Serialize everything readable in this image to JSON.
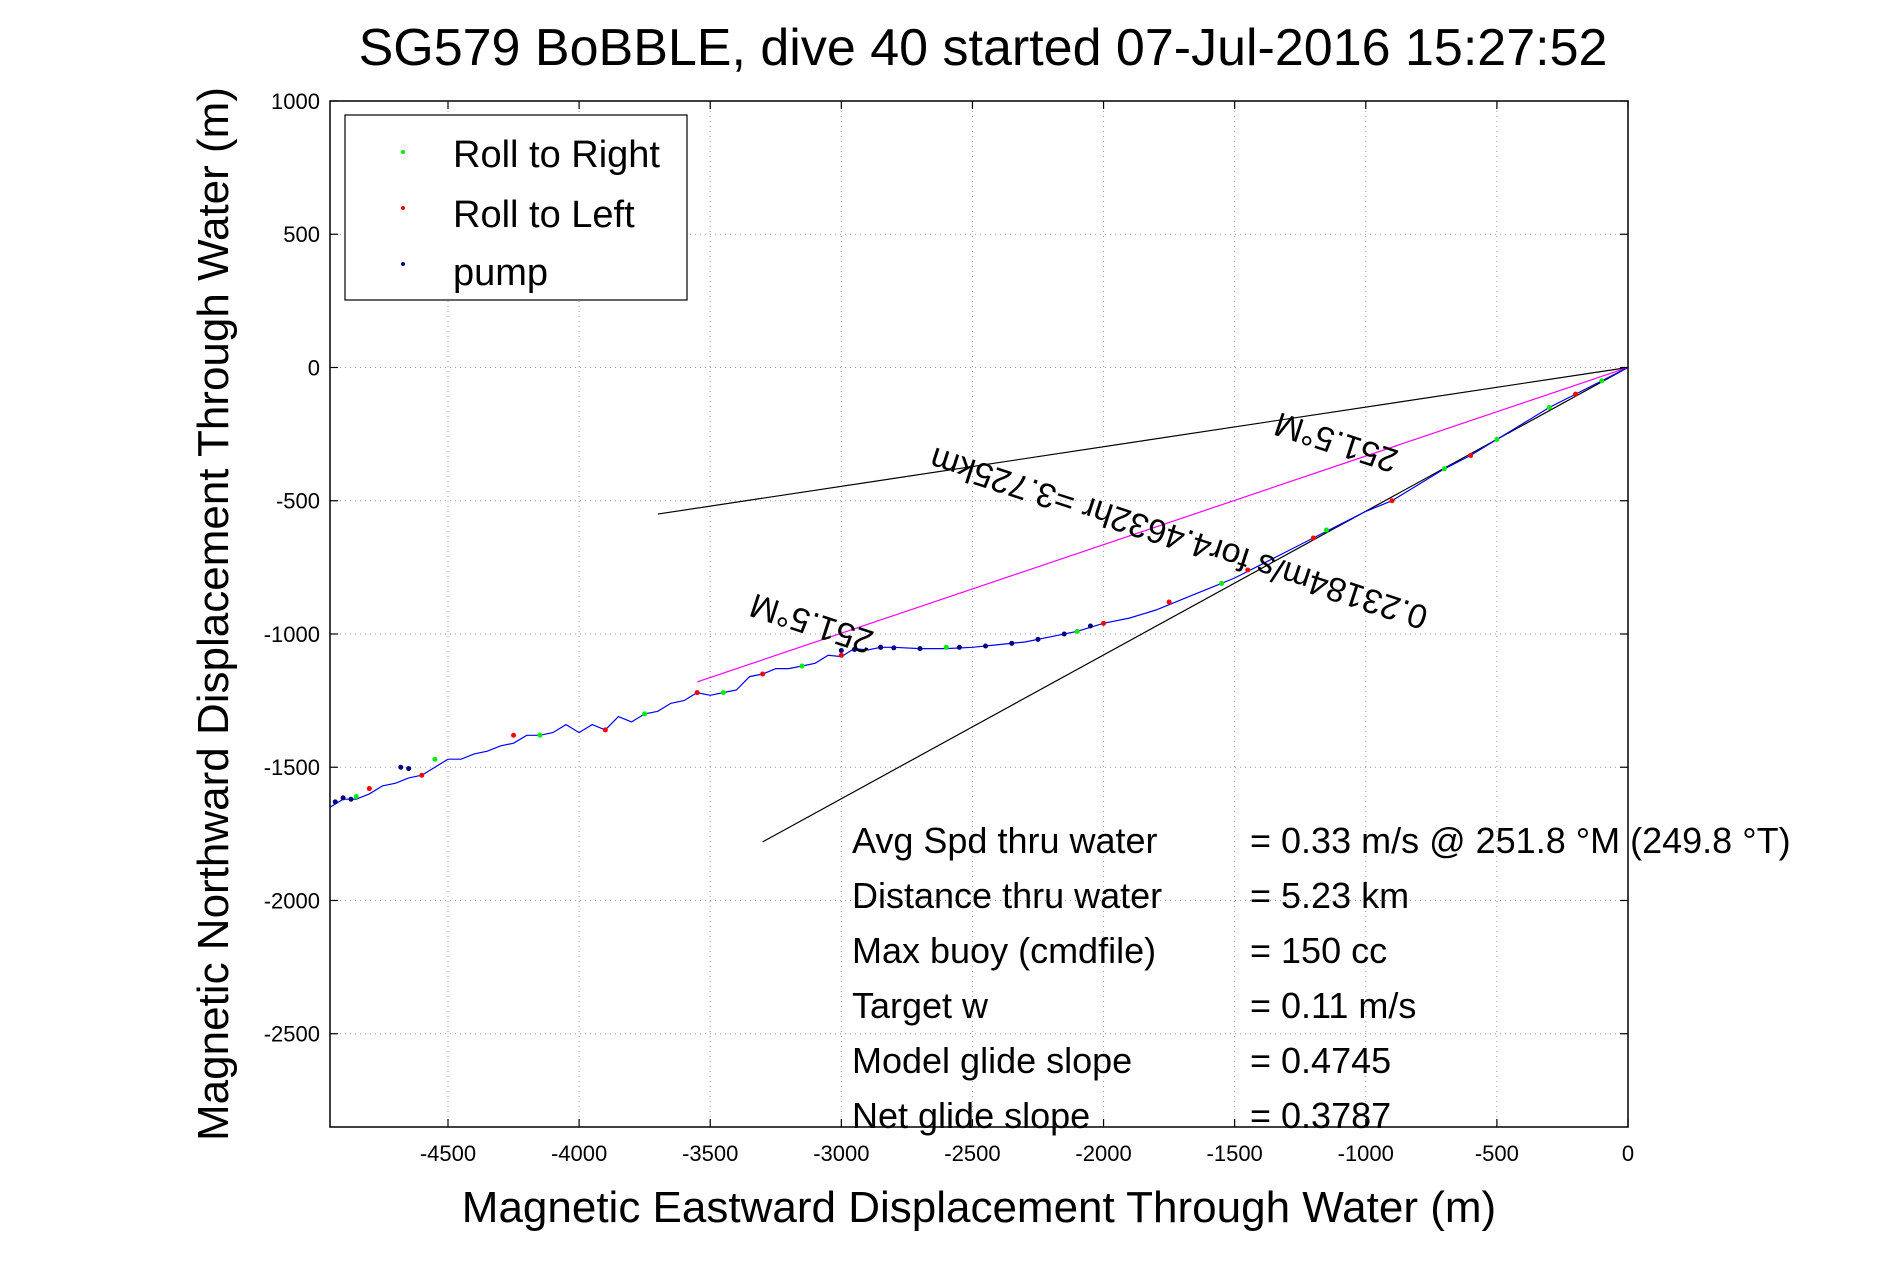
{
  "chart_data": {
    "type": "line",
    "title": "SG579 BoBBLE, dive 40 started 07-Jul-2016 15:27:52",
    "xlabel": "Magnetic Eastward Displacement Through Water (m)",
    "ylabel": "Magnetic Northward Displacement Through Water (m)",
    "xlim": [
      -4950,
      0
    ],
    "ylim": [
      -2850,
      1000
    ],
    "grid": true,
    "x_ticks": [
      -4500,
      -4000,
      -3500,
      -3000,
      -2500,
      -2000,
      -1500,
      -1000,
      -500,
      0
    ],
    "y_ticks": [
      1000,
      500,
      0,
      -500,
      -1000,
      -1500,
      -2000,
      -2500
    ],
    "legend": {
      "location": "top-left",
      "entries": [
        {
          "label": "Roll to Right",
          "color": "#00ee00"
        },
        {
          "label": "Roll to Left",
          "color": "#ff0000"
        },
        {
          "label": "pump",
          "color": "#000080"
        }
      ]
    },
    "series": [
      {
        "color": "#0000ff",
        "x": [
          0,
          -100,
          -200,
          -300,
          -400,
          -500,
          -600,
          -700,
          -800,
          -900,
          -1000,
          -1100,
          -1200,
          -1300,
          -1400,
          -1500,
          -1600,
          -1700,
          -1800,
          -1900,
          -2000,
          -2100,
          -2200,
          -2300,
          -2400,
          -2500,
          -2600,
          -2700,
          -2800,
          -2850,
          -2900,
          -2950,
          -3000,
          -3050,
          -3100,
          -3150,
          -3200,
          -3250,
          -3300,
          -3350,
          -3400,
          -3450,
          -3500,
          -3550,
          -3600,
          -3650,
          -3700,
          -3750,
          -3800,
          -3850,
          -3900,
          -3950,
          -4000,
          -4050,
          -4100,
          -4150,
          -4200,
          -4250,
          -4300,
          -4350,
          -4400,
          -4450,
          -4500,
          -4550,
          -4600,
          -4650,
          -4700,
          -4750,
          -4800,
          -4850,
          -4900,
          -4950
        ],
        "y": [
          0,
          -50,
          -100,
          -150,
          -210,
          -270,
          -330,
          -380,
          -440,
          -500,
          -540,
          -590,
          -640,
          -690,
          -740,
          -790,
          -830,
          -870,
          -910,
          -940,
          -960,
          -990,
          -1010,
          -1030,
          -1040,
          -1050,
          -1055,
          -1055,
          -1050,
          -1050,
          -1060,
          -1055,
          -1085,
          -1080,
          -1110,
          -1120,
          -1130,
          -1130,
          -1150,
          -1160,
          -1210,
          -1220,
          -1230,
          -1220,
          -1250,
          -1260,
          -1290,
          -1300,
          -1330,
          -1310,
          -1360,
          -1340,
          -1370,
          -1340,
          -1370,
          -1380,
          -1380,
          -1410,
          -1420,
          -1440,
          -1450,
          -1470,
          -1470,
          -1500,
          -1530,
          -1540,
          -1560,
          -1570,
          -1600,
          -1620,
          -1620,
          -1650
        ]
      },
      {
        "name": "Roll to Right",
        "color": "#00ee00",
        "x": [
          -100,
          -300,
          -500,
          -700,
          -1150,
          -1550,
          -2100,
          -2600,
          -3150,
          -3450,
          -3750,
          -4150,
          -4550,
          -4850
        ],
        "y": [
          -50,
          -150,
          -270,
          -380,
          -610,
          -810,
          -990,
          -1050,
          -1120,
          -1220,
          -1300,
          -1380,
          -1470,
          -1610
        ]
      },
      {
        "name": "Roll to Left",
        "color": "#ff0000",
        "x": [
          -200,
          -600,
          -900,
          -1200,
          -1450,
          -1750,
          -2000,
          -2850,
          -3000,
          -3300,
          -3550,
          -3900,
          -4250,
          -4600,
          -4800
        ],
        "y": [
          -100,
          -330,
          -500,
          -640,
          -760,
          -880,
          -960,
          -1050,
          -1080,
          -1150,
          -1220,
          -1360,
          -1380,
          -1530,
          -1580
        ]
      },
      {
        "name": "pump",
        "color": "#000080",
        "x": [
          -2050,
          -2150,
          -2250,
          -2350,
          -2450,
          -2550,
          -2700,
          -2800,
          -2850,
          -2950,
          -3000,
          -4650,
          -4680,
          -4870,
          -4900,
          -4930
        ],
        "y": [
          -970,
          -1000,
          -1020,
          -1035,
          -1045,
          -1050,
          -1055,
          -1052,
          -1050,
          -1058,
          -1062,
          -1505,
          -1500,
          -1620,
          -1615,
          -1630
        ]
      }
    ],
    "reference_lines": [
      {
        "color": "#000000",
        "x": [
          0,
          -3700
        ],
        "y": [
          0,
          -550
        ]
      },
      {
        "color": "#000000",
        "x": [
          0,
          -3300
        ],
        "y": [
          0,
          -1780
        ]
      },
      {
        "color": "#ff00ff",
        "x": [
          0,
          -3550
        ],
        "y": [
          0,
          -1180
        ]
      }
    ],
    "annotations": [
      {
        "text": "251.5°M",
        "x": -1100,
        "y": -240,
        "angle": 198
      },
      {
        "text": "0.23184m/s for4.4632hr =3.725km",
        "x": -1700,
        "y": -600,
        "angle": 198
      },
      {
        "text": "251.5°M",
        "x": -3100,
        "y": -920,
        "angle": 198
      }
    ],
    "stats": [
      {
        "label": "Avg Spd thru water",
        "value": "=  0.33 m/s @ 251.8 °M (249.8 °T)"
      },
      {
        "label": "Distance thru water",
        "value": "=  5.23 km"
      },
      {
        "label": "Max buoy (cmdfile)",
        "value": "= 150 cc"
      },
      {
        "label": "Target w",
        "value": "= 0.11 m/s"
      },
      {
        "label": "Model glide slope",
        "value": "= 0.4745"
      },
      {
        "label": "Net glide slope",
        "value": "= 0.3787"
      }
    ]
  }
}
